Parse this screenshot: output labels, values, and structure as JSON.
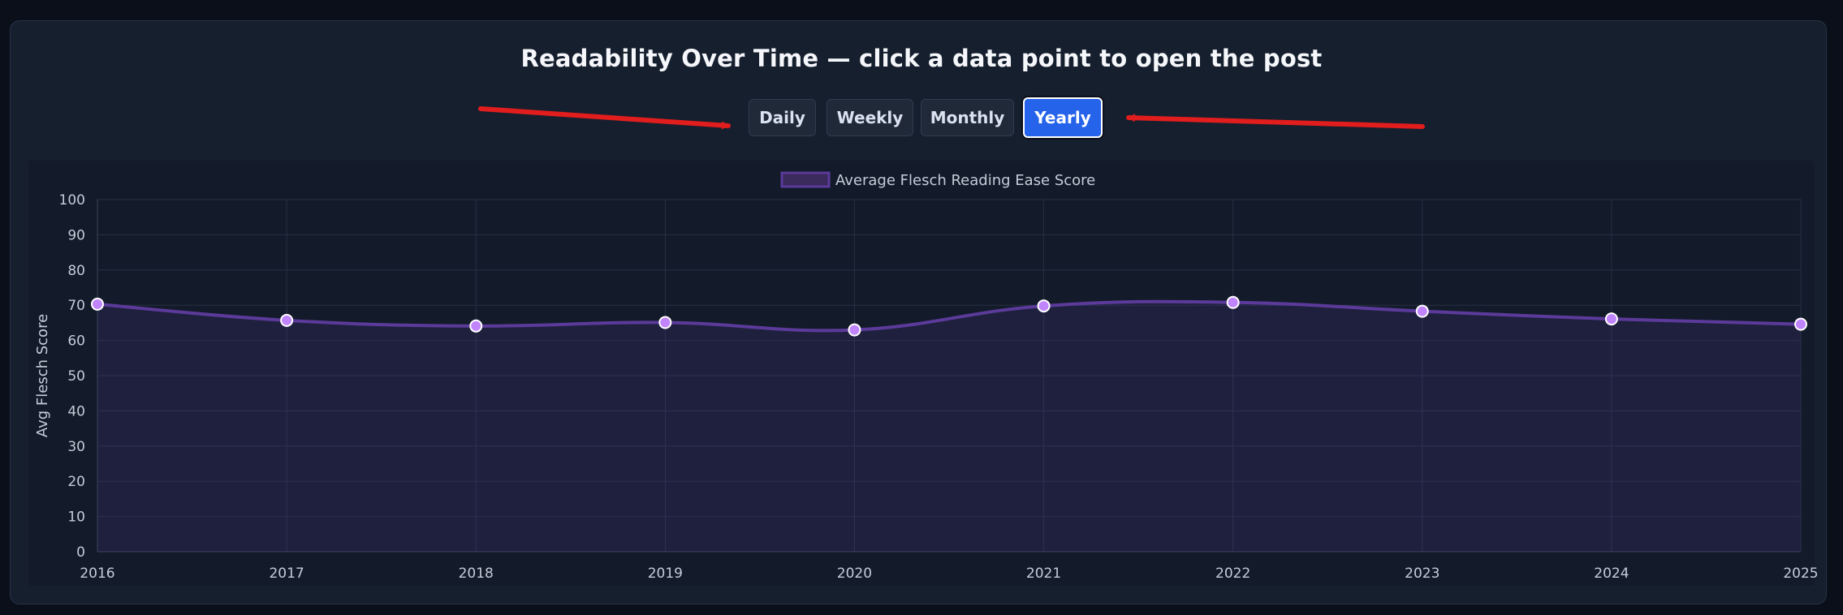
{
  "header": {
    "title": "Readability Over Time — click a data point to open the post"
  },
  "toggles": [
    {
      "label": "Daily",
      "active": false
    },
    {
      "label": "Weekly",
      "active": false
    },
    {
      "label": "Monthly",
      "active": false
    },
    {
      "label": "Yearly",
      "active": true
    }
  ],
  "colors": {
    "accent": "#2563eb",
    "series_line": "#5b3a9a",
    "series_point": "#c084fc",
    "annotation_arrow": "#e11d1d"
  },
  "chart_data": {
    "type": "line",
    "title": "",
    "x": [
      "2016",
      "2017",
      "2018",
      "2019",
      "2020",
      "2021",
      "2022",
      "2023",
      "2024",
      "2025"
    ],
    "series": [
      {
        "name": "Average Flesch Reading Ease Score",
        "values": [
          70.3,
          65.7,
          64.1,
          65.1,
          63.0,
          69.8,
          70.8,
          68.3,
          66.1,
          64.6
        ]
      }
    ],
    "xlabel": "",
    "ylabel": "Avg Flesch Score",
    "ylim": [
      0,
      100
    ],
    "yticks": [
      0,
      10,
      20,
      30,
      40,
      50,
      60,
      70,
      80,
      90,
      100
    ],
    "grid": true,
    "filled": true,
    "smooth": true,
    "legend": "top-center"
  }
}
